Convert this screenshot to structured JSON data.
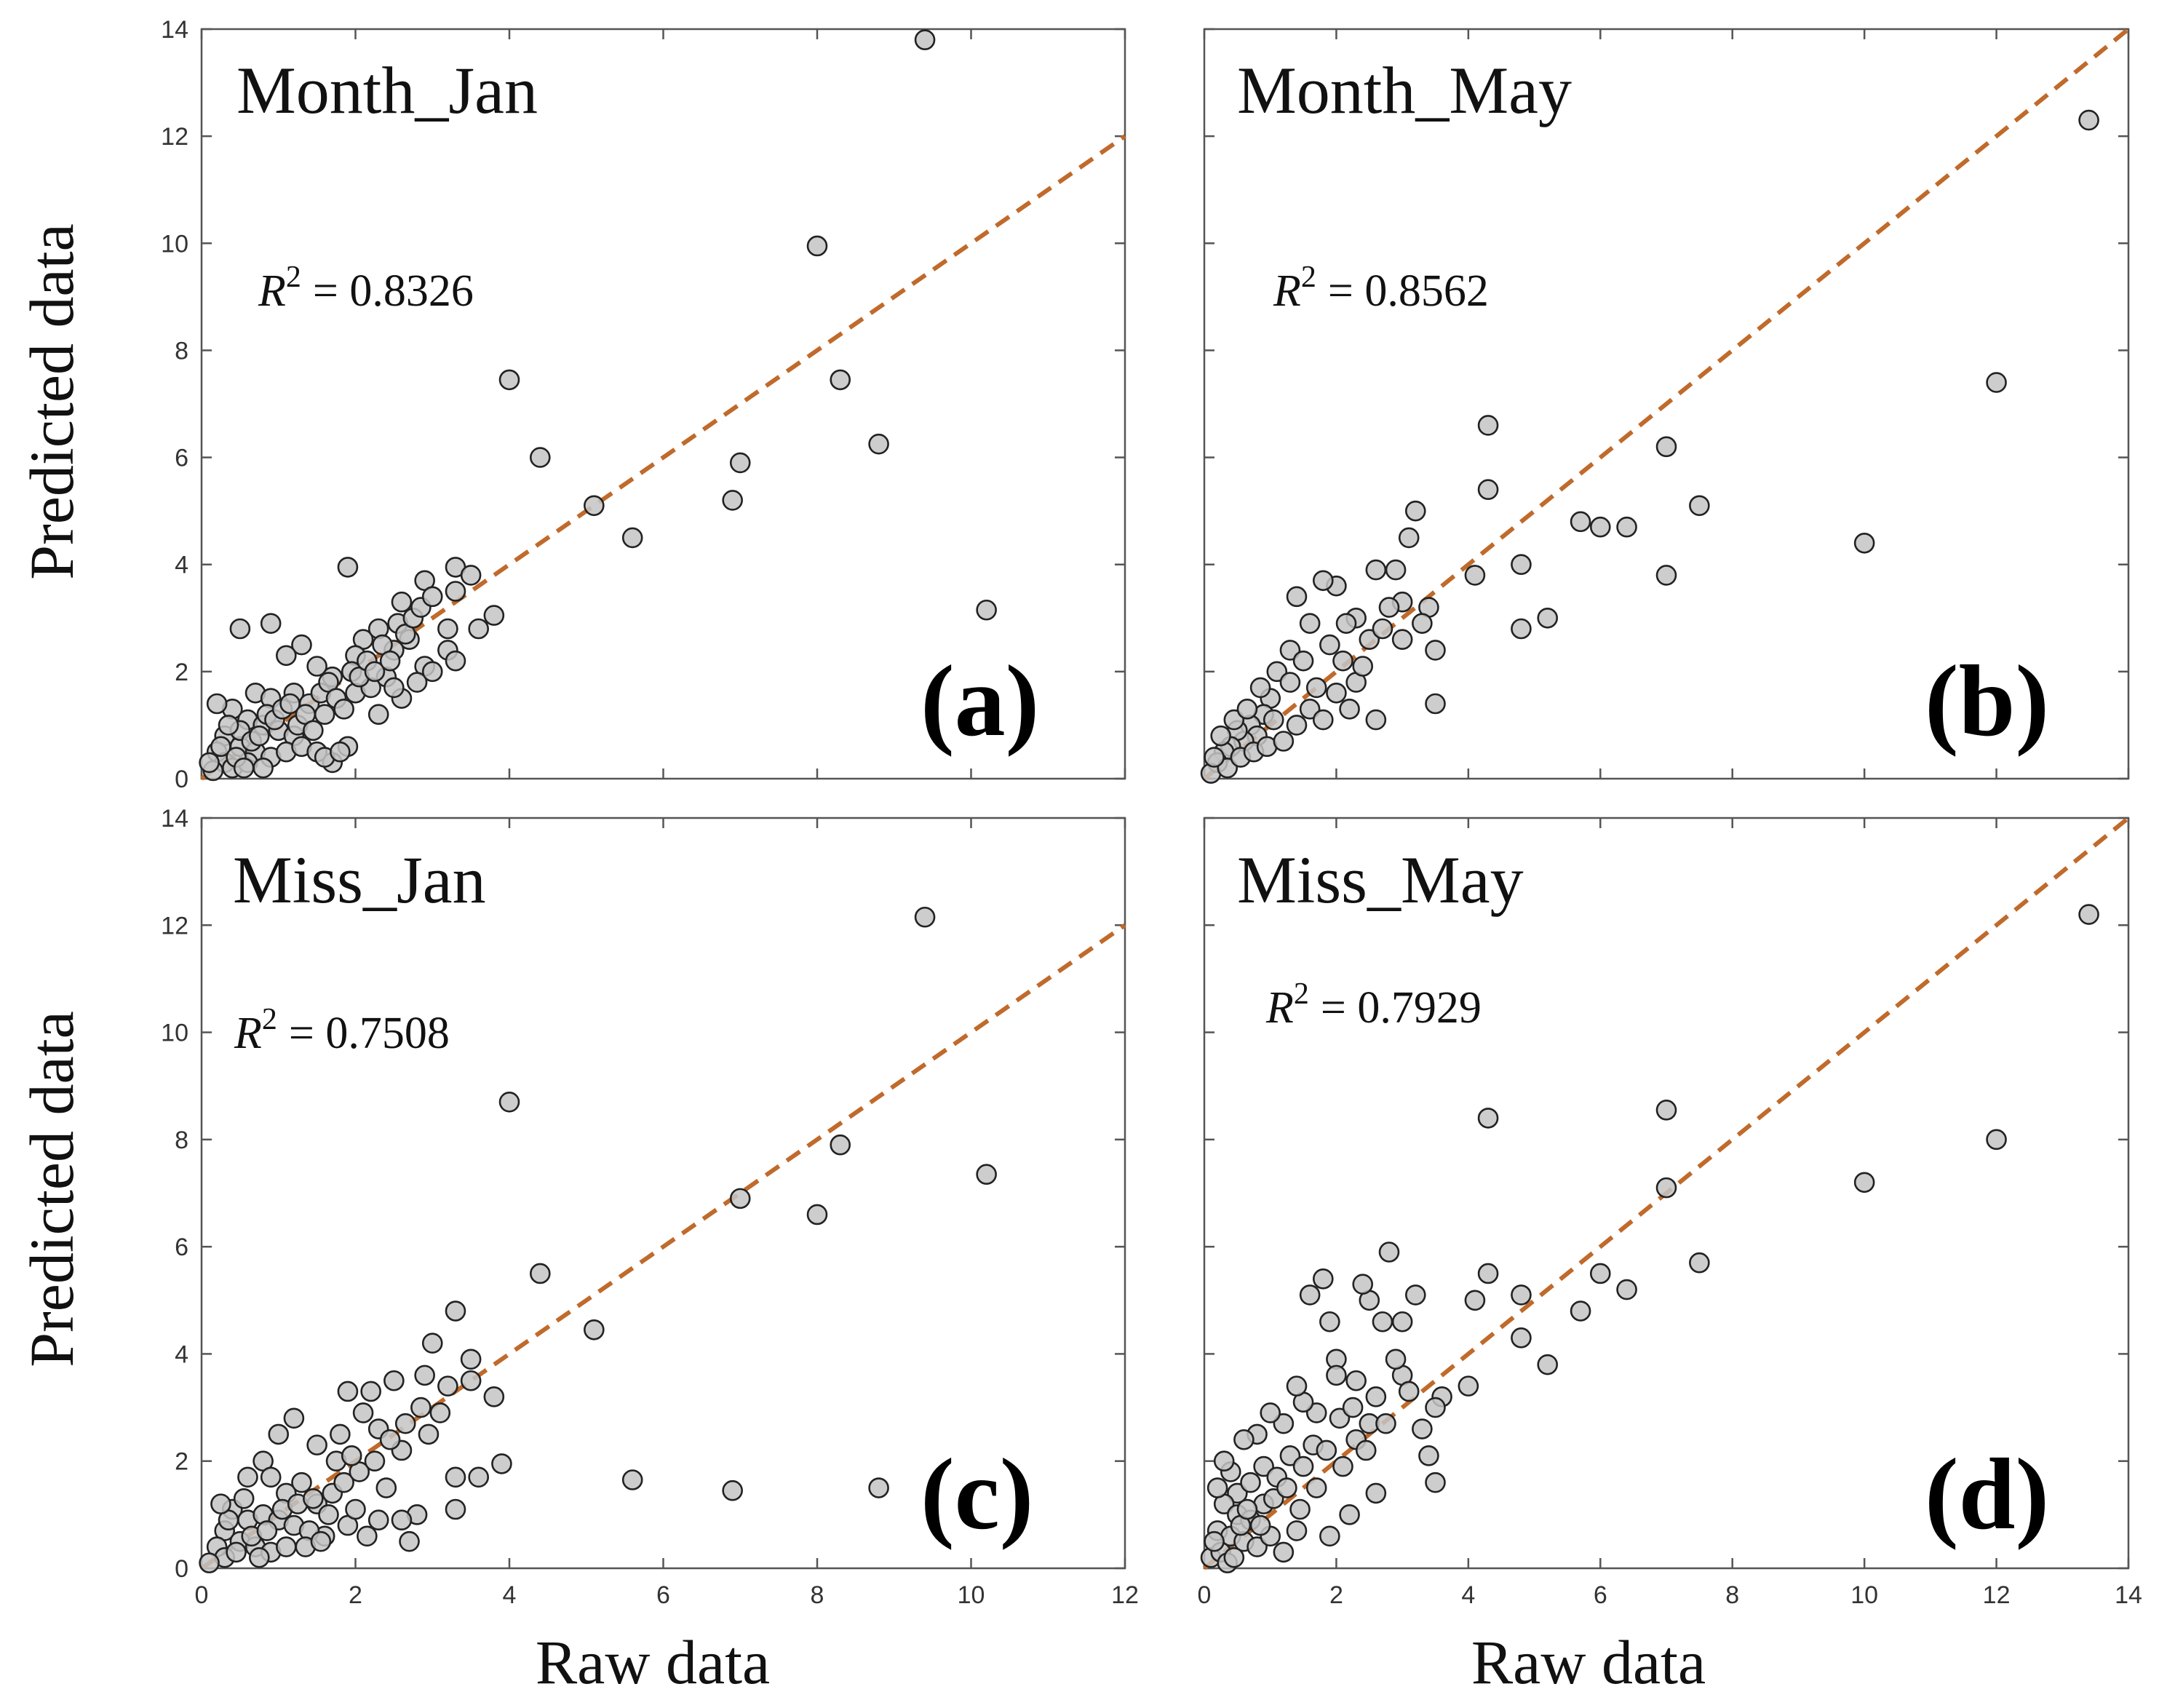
{
  "figure": {
    "y_axis_title": "Predicted data",
    "x_axis_title": "Raw data"
  },
  "chart_data": [
    {
      "type": "scatter",
      "panel_title": "Month_Jan",
      "panel_letter": "(a)",
      "r2_symbol": "R",
      "r2_exponent": "2",
      "r2_text": "= 0.8326",
      "xlim": [
        0,
        12
      ],
      "ylim": [
        0,
        14
      ],
      "x_ticks": [
        0,
        2,
        4,
        6,
        8,
        10,
        12
      ],
      "y_ticks": [
        0,
        2,
        4,
        6,
        8,
        10,
        12,
        14
      ],
      "show_x_tick_labels": false,
      "show_y_tick_labels": true,
      "reference_line": "y = x",
      "points": [
        [
          9.4,
          13.8
        ],
        [
          8.0,
          9.95
        ],
        [
          4.0,
          7.45
        ],
        [
          8.3,
          7.45
        ],
        [
          8.8,
          6.25
        ],
        [
          4.4,
          6.0
        ],
        [
          7.0,
          5.9
        ],
        [
          6.9,
          5.2
        ],
        [
          5.1,
          5.1
        ],
        [
          5.6,
          4.5
        ],
        [
          10.2,
          3.15
        ],
        [
          1.9,
          3.95
        ],
        [
          3.3,
          3.95
        ],
        [
          3.5,
          3.8
        ],
        [
          2.9,
          3.7
        ],
        [
          2.6,
          3.3
        ],
        [
          3.3,
          3.5
        ],
        [
          3.8,
          3.05
        ],
        [
          3.2,
          2.8
        ],
        [
          3.6,
          2.8
        ],
        [
          3.2,
          2.4
        ],
        [
          3.3,
          2.2
        ],
        [
          2.7,
          2.6
        ],
        [
          2.9,
          2.1
        ],
        [
          2.4,
          1.9
        ],
        [
          2.6,
          1.5
        ],
        [
          2.3,
          1.2
        ],
        [
          1.9,
          0.6
        ],
        [
          1.7,
          0.3
        ],
        [
          0.5,
          2.8
        ],
        [
          0.9,
          2.9
        ],
        [
          1.3,
          2.5
        ],
        [
          1.1,
          2.3
        ],
        [
          1.5,
          2.1
        ],
        [
          1.7,
          1.9
        ],
        [
          2.1,
          2.6
        ],
        [
          2.0,
          2.3
        ],
        [
          2.3,
          2.8
        ],
        [
          2.5,
          2.4
        ],
        [
          0.7,
          1.6
        ],
        [
          0.9,
          1.5
        ],
        [
          1.2,
          1.6
        ],
        [
          1.4,
          1.4
        ],
        [
          1.6,
          1.2
        ],
        [
          0.4,
          1.3
        ],
        [
          0.6,
          1.1
        ],
        [
          0.8,
          1.0
        ],
        [
          1.0,
          0.9
        ],
        [
          1.2,
          0.8
        ],
        [
          0.3,
          0.8
        ],
        [
          0.5,
          0.6
        ],
        [
          0.7,
          0.5
        ],
        [
          0.9,
          0.4
        ],
        [
          1.1,
          0.5
        ],
        [
          1.3,
          0.6
        ],
        [
          1.5,
          0.5
        ],
        [
          0.2,
          0.5
        ],
        [
          0.3,
          0.3
        ],
        [
          0.4,
          0.2
        ],
        [
          0.15,
          0.15
        ],
        [
          0.6,
          0.3
        ],
        [
          0.8,
          0.2
        ],
        [
          1.6,
          0.4
        ],
        [
          1.8,
          0.5
        ],
        [
          2.0,
          1.6
        ],
        [
          2.2,
          1.7
        ],
        [
          2.8,
          1.8
        ],
        [
          3.0,
          2.0
        ],
        [
          2.5,
          1.7
        ],
        [
          0.5,
          0.9
        ],
        [
          0.25,
          0.6
        ],
        [
          0.35,
          1.0
        ],
        [
          0.45,
          0.4
        ],
        [
          0.1,
          0.3
        ],
        [
          0.55,
          0.2
        ],
        [
          0.65,
          0.7
        ],
        [
          0.75,
          0.8
        ],
        [
          0.85,
          1.2
        ],
        [
          0.95,
          1.1
        ],
        [
          1.05,
          1.3
        ],
        [
          1.15,
          1.4
        ],
        [
          1.25,
          1.0
        ],
        [
          1.35,
          1.2
        ],
        [
          1.45,
          0.9
        ],
        [
          1.55,
          1.6
        ],
        [
          1.65,
          1.8
        ],
        [
          1.75,
          1.5
        ],
        [
          1.85,
          1.3
        ],
        [
          1.95,
          2.0
        ],
        [
          2.05,
          1.9
        ],
        [
          2.15,
          2.2
        ],
        [
          2.25,
          2.0
        ],
        [
          2.35,
          2.5
        ],
        [
          2.45,
          2.2
        ],
        [
          2.55,
          2.9
        ],
        [
          2.65,
          2.7
        ],
        [
          2.75,
          3.0
        ],
        [
          2.85,
          3.2
        ],
        [
          3.0,
          3.4
        ],
        [
          0.2,
          1.4
        ]
      ]
    },
    {
      "type": "scatter",
      "panel_title": "Month_May",
      "panel_letter": "(b)",
      "r2_symbol": "R",
      "r2_exponent": "2",
      "r2_text": "= 0.8562",
      "xlim": [
        0,
        14
      ],
      "ylim": [
        0,
        14
      ],
      "x_ticks": [
        0,
        2,
        4,
        6,
        8,
        10,
        12,
        14
      ],
      "y_ticks": [
        0,
        2,
        4,
        6,
        8,
        10,
        12,
        14
      ],
      "show_x_tick_labels": false,
      "show_y_tick_labels": false,
      "reference_line": "y = x",
      "points": [
        [
          13.4,
          12.3
        ],
        [
          12.0,
          7.4
        ],
        [
          10.0,
          4.4
        ],
        [
          7.0,
          6.2
        ],
        [
          7.5,
          5.1
        ],
        [
          7.0,
          3.8
        ],
        [
          6.4,
          4.7
        ],
        [
          6.0,
          4.7
        ],
        [
          5.7,
          4.8
        ],
        [
          5.2,
          3.0
        ],
        [
          4.8,
          2.8
        ],
        [
          4.8,
          4.0
        ],
        [
          4.3,
          6.6
        ],
        [
          4.3,
          5.4
        ],
        [
          4.1,
          3.8
        ],
        [
          3.5,
          2.4
        ],
        [
          3.5,
          1.4
        ],
        [
          3.4,
          3.2
        ],
        [
          3.1,
          4.5
        ],
        [
          3.2,
          5.0
        ],
        [
          3.0,
          3.3
        ],
        [
          2.8,
          3.2
        ],
        [
          2.6,
          3.9
        ],
        [
          2.9,
          3.9
        ],
        [
          2.5,
          2.6
        ],
        [
          2.3,
          3.0
        ],
        [
          2.1,
          2.2
        ],
        [
          2.6,
          1.1
        ],
        [
          2.0,
          3.6
        ],
        [
          1.8,
          3.7
        ],
        [
          1.4,
          3.4
        ],
        [
          1.6,
          2.9
        ],
        [
          1.3,
          2.4
        ],
        [
          1.7,
          1.7
        ],
        [
          2.0,
          1.6
        ],
        [
          2.3,
          1.8
        ],
        [
          1.1,
          2.0
        ],
        [
          1.3,
          1.8
        ],
        [
          1.0,
          1.5
        ],
        [
          0.9,
          1.2
        ],
        [
          0.7,
          1.0
        ],
        [
          0.8,
          0.8
        ],
        [
          0.6,
          0.7
        ],
        [
          0.5,
          0.9
        ],
        [
          0.4,
          0.6
        ],
        [
          0.3,
          0.5
        ],
        [
          0.2,
          0.3
        ],
        [
          0.1,
          0.1
        ],
        [
          0.35,
          0.2
        ],
        [
          0.55,
          0.4
        ],
        [
          0.75,
          0.5
        ],
        [
          0.95,
          0.6
        ],
        [
          1.2,
          0.7
        ],
        [
          1.4,
          1.0
        ],
        [
          1.6,
          1.3
        ],
        [
          1.8,
          1.1
        ],
        [
          2.2,
          1.3
        ],
        [
          2.4,
          2.1
        ],
        [
          2.7,
          2.8
        ],
        [
          3.0,
          2.6
        ],
        [
          3.3,
          2.9
        ],
        [
          0.45,
          1.1
        ],
        [
          0.65,
          1.3
        ],
        [
          0.85,
          1.7
        ],
        [
          1.05,
          1.1
        ],
        [
          1.5,
          2.2
        ],
        [
          1.9,
          2.5
        ],
        [
          2.15,
          2.9
        ],
        [
          0.25,
          0.8
        ],
        [
          0.15,
          0.4
        ]
      ]
    },
    {
      "type": "scatter",
      "panel_title": "Miss_Jan",
      "panel_letter": "(c)",
      "r2_symbol": "R",
      "r2_exponent": "2",
      "r2_text": "= 0.7508",
      "xlim": [
        0,
        12
      ],
      "ylim": [
        0,
        14
      ],
      "x_ticks": [
        0,
        2,
        4,
        6,
        8,
        10,
        12
      ],
      "y_ticks": [
        0,
        2,
        4,
        6,
        8,
        10,
        12,
        14
      ],
      "show_x_tick_labels": true,
      "show_y_tick_labels": true,
      "reference_line": "y = x",
      "points": [
        [
          9.4,
          12.15
        ],
        [
          4.0,
          8.7
        ],
        [
          8.3,
          7.9
        ],
        [
          10.2,
          7.35
        ],
        [
          7.0,
          6.9
        ],
        [
          8.0,
          6.6
        ],
        [
          4.4,
          5.5
        ],
        [
          5.1,
          4.45
        ],
        [
          3.3,
          4.8
        ],
        [
          3.0,
          4.2
        ],
        [
          3.5,
          3.9
        ],
        [
          3.5,
          3.5
        ],
        [
          2.9,
          3.6
        ],
        [
          3.8,
          3.2
        ],
        [
          2.5,
          3.5
        ],
        [
          2.2,
          3.3
        ],
        [
          1.9,
          3.3
        ],
        [
          3.9,
          1.95
        ],
        [
          3.6,
          1.7
        ],
        [
          3.3,
          1.7
        ],
        [
          3.3,
          1.1
        ],
        [
          5.6,
          1.65
        ],
        [
          6.9,
          1.45
        ],
        [
          8.8,
          1.5
        ],
        [
          2.8,
          1.0
        ],
        [
          2.6,
          0.9
        ],
        [
          2.3,
          0.9
        ],
        [
          2.7,
          0.5
        ],
        [
          1.9,
          0.8
        ],
        [
          1.6,
          0.6
        ],
        [
          2.0,
          1.1
        ],
        [
          2.4,
          1.5
        ],
        [
          2.6,
          2.2
        ],
        [
          2.3,
          2.6
        ],
        [
          2.1,
          2.9
        ],
        [
          1.8,
          2.5
        ],
        [
          1.5,
          2.3
        ],
        [
          1.2,
          2.8
        ],
        [
          1.0,
          2.5
        ],
        [
          0.8,
          2.0
        ],
        [
          0.6,
          1.7
        ],
        [
          0.9,
          1.7
        ],
        [
          1.1,
          1.4
        ],
        [
          1.3,
          1.6
        ],
        [
          1.5,
          1.2
        ],
        [
          1.7,
          1.4
        ],
        [
          0.4,
          1.1
        ],
        [
          0.6,
          0.9
        ],
        [
          0.8,
          1.0
        ],
        [
          1.0,
          0.9
        ],
        [
          1.2,
          0.8
        ],
        [
          1.4,
          0.7
        ],
        [
          0.3,
          0.7
        ],
        [
          0.5,
          0.5
        ],
        [
          0.7,
          0.4
        ],
        [
          0.9,
          0.3
        ],
        [
          1.1,
          0.4
        ],
        [
          0.2,
          0.4
        ],
        [
          0.3,
          0.2
        ],
        [
          0.1,
          0.1
        ],
        [
          0.45,
          0.3
        ],
        [
          0.65,
          0.6
        ],
        [
          0.85,
          0.7
        ],
        [
          1.05,
          1.1
        ],
        [
          1.25,
          1.2
        ],
        [
          1.45,
          1.3
        ],
        [
          1.65,
          1.0
        ],
        [
          1.85,
          1.6
        ],
        [
          2.05,
          1.8
        ],
        [
          2.25,
          2.0
        ],
        [
          2.45,
          2.4
        ],
        [
          2.65,
          2.7
        ],
        [
          2.85,
          3.0
        ],
        [
          3.1,
          2.9
        ],
        [
          1.75,
          2.0
        ],
        [
          1.95,
          2.1
        ],
        [
          0.35,
          0.9
        ],
        [
          0.55,
          1.3
        ],
        [
          0.75,
          0.2
        ],
        [
          1.35,
          0.4
        ],
        [
          1.55,
          0.5
        ],
        [
          2.15,
          0.6
        ],
        [
          0.25,
          1.2
        ],
        [
          2.95,
          2.5
        ],
        [
          3.2,
          3.4
        ]
      ]
    },
    {
      "type": "scatter",
      "panel_title": "Miss_May",
      "panel_letter": "(d)",
      "r2_symbol": "R",
      "r2_exponent": "2",
      "r2_text": "= 0.7929",
      "xlim": [
        0,
        14
      ],
      "ylim": [
        0,
        14
      ],
      "x_ticks": [
        0,
        2,
        4,
        6,
        8,
        10,
        12,
        14
      ],
      "y_ticks": [
        0,
        2,
        4,
        6,
        8,
        10,
        12,
        14
      ],
      "show_x_tick_labels": true,
      "show_y_tick_labels": false,
      "reference_line": "y = x",
      "points": [
        [
          13.4,
          12.2
        ],
        [
          12.0,
          8.0
        ],
        [
          10.0,
          7.2
        ],
        [
          7.0,
          8.55
        ],
        [
          7.0,
          7.1
        ],
        [
          7.5,
          5.7
        ],
        [
          6.4,
          5.2
        ],
        [
          6.0,
          5.5
        ],
        [
          5.7,
          4.8
        ],
        [
          5.2,
          3.8
        ],
        [
          4.8,
          5.1
        ],
        [
          4.8,
          4.3
        ],
        [
          4.3,
          8.4
        ],
        [
          4.3,
          5.5
        ],
        [
          4.1,
          5.0
        ],
        [
          4.0,
          3.4
        ],
        [
          3.6,
          3.2
        ],
        [
          3.5,
          3.0
        ],
        [
          3.5,
          1.6
        ],
        [
          3.4,
          2.1
        ],
        [
          3.2,
          5.1
        ],
        [
          3.0,
          4.6
        ],
        [
          3.0,
          3.6
        ],
        [
          2.8,
          5.9
        ],
        [
          2.7,
          4.6
        ],
        [
          2.5,
          5.0
        ],
        [
          2.4,
          5.3
        ],
        [
          2.6,
          3.2
        ],
        [
          2.9,
          3.9
        ],
        [
          2.3,
          3.5
        ],
        [
          2.0,
          3.9
        ],
        [
          2.0,
          3.6
        ],
        [
          1.8,
          5.4
        ],
        [
          1.6,
          5.1
        ],
        [
          1.9,
          4.6
        ],
        [
          1.7,
          2.9
        ],
        [
          1.5,
          3.1
        ],
        [
          1.4,
          3.4
        ],
        [
          1.2,
          2.7
        ],
        [
          1.0,
          2.9
        ],
        [
          0.8,
          2.5
        ],
        [
          0.6,
          2.4
        ],
        [
          0.9,
          1.9
        ],
        [
          1.1,
          1.7
        ],
        [
          1.3,
          2.1
        ],
        [
          1.5,
          1.9
        ],
        [
          1.7,
          1.5
        ],
        [
          2.1,
          1.9
        ],
        [
          2.3,
          2.4
        ],
        [
          2.5,
          2.7
        ],
        [
          2.6,
          1.4
        ],
        [
          2.2,
          1.0
        ],
        [
          1.9,
          0.6
        ],
        [
          1.4,
          0.7
        ],
        [
          1.2,
          0.3
        ],
        [
          0.4,
          1.8
        ],
        [
          0.5,
          1.4
        ],
        [
          0.7,
          1.6
        ],
        [
          0.9,
          1.2
        ],
        [
          0.3,
          1.2
        ],
        [
          0.5,
          1.0
        ],
        [
          0.7,
          0.9
        ],
        [
          0.2,
          0.7
        ],
        [
          0.4,
          0.6
        ],
        [
          0.6,
          0.5
        ],
        [
          0.8,
          0.4
        ],
        [
          1.0,
          0.6
        ],
        [
          0.1,
          0.2
        ],
        [
          0.25,
          0.3
        ],
        [
          0.35,
          0.1
        ],
        [
          0.15,
          0.5
        ],
        [
          0.45,
          0.2
        ],
        [
          0.55,
          0.8
        ],
        [
          0.65,
          1.1
        ],
        [
          0.85,
          0.8
        ],
        [
          1.05,
          1.3
        ],
        [
          1.25,
          1.5
        ],
        [
          1.45,
          1.1
        ],
        [
          1.65,
          2.3
        ],
        [
          1.85,
          2.2
        ],
        [
          2.05,
          2.8
        ],
        [
          2.25,
          3.0
        ],
        [
          2.45,
          2.2
        ],
        [
          2.75,
          2.7
        ],
        [
          3.1,
          3.3
        ],
        [
          3.3,
          2.6
        ],
        [
          0.3,
          2.0
        ],
        [
          0.2,
          1.5
        ]
      ]
    }
  ]
}
